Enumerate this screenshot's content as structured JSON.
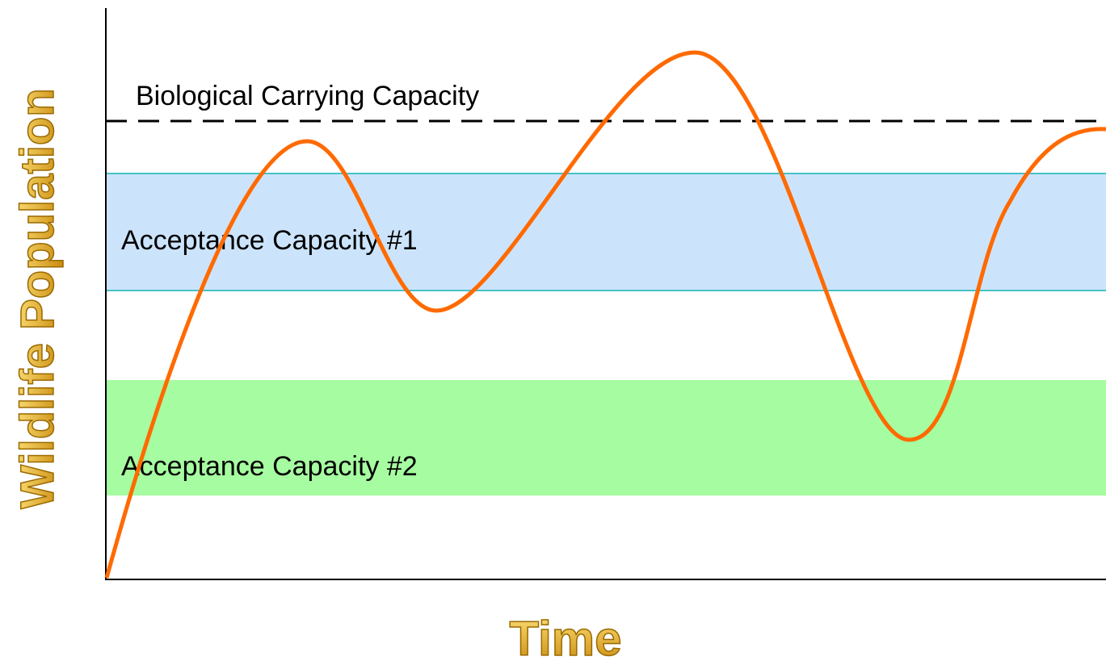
{
  "axes": {
    "y_label": "Wildlife Population",
    "x_label": "Time"
  },
  "reference_line": {
    "label": "Biological Carrying Capacity"
  },
  "bands": [
    {
      "label": "Acceptance Capacity #1"
    },
    {
      "label": "Acceptance Capacity #2"
    }
  ]
}
